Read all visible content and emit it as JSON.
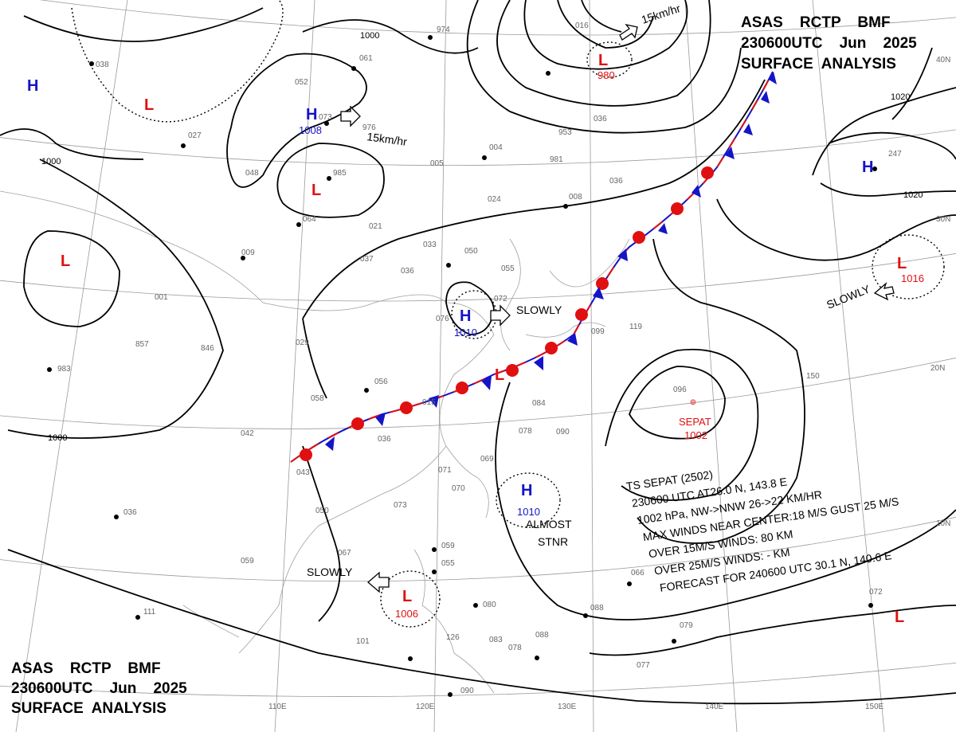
{
  "header_top": {
    "line1": "ASAS    RCTP    BMF",
    "line2": "230600UTC    Jun    2025",
    "line3": "SURFACE  ANALYSIS"
  },
  "header_bottom": {
    "line1": "ASAS    RCTP    BMF",
    "line2": "230600UTC    Jun    2025",
    "line3": "SURFACE  ANALYSIS"
  },
  "longitudes": [
    "110E",
    "120E",
    "130E",
    "140E",
    "150E"
  ],
  "latitudes": [
    "40N",
    "30N",
    "20N",
    "10N"
  ],
  "isobar_labels": [
    "1000",
    "1000",
    "1000",
    "1020",
    "1020"
  ],
  "pressure_systems": [
    {
      "type": "H",
      "value": "1008",
      "color": "#1414c8"
    },
    {
      "type": "H",
      "value": "1010",
      "color": "#1414c8"
    },
    {
      "type": "H",
      "value": "1010",
      "color": "#1414c8"
    },
    {
      "type": "H",
      "value": "",
      "color": "#1414c8"
    },
    {
      "type": "H",
      "value": "",
      "color": "#1414c8"
    },
    {
      "type": "L",
      "value": "980",
      "color": "#e01010"
    },
    {
      "type": "L",
      "value": "1016",
      "color": "#e01010"
    },
    {
      "type": "L",
      "value": "1006",
      "color": "#e01010"
    },
    {
      "type": "L",
      "value": "",
      "color": "#e01010"
    },
    {
      "type": "L",
      "value": "",
      "color": "#e01010"
    },
    {
      "type": "L",
      "value": "",
      "color": "#e01010"
    },
    {
      "type": "L",
      "value": "",
      "color": "#e01010"
    },
    {
      "type": "L",
      "value": "",
      "color": "#e01010"
    }
  ],
  "motion_labels": [
    "15km/hr",
    "15km/hr",
    "SLOWLY",
    "SLOWLY",
    "SLOWLY",
    "ALMOST",
    "STNR"
  ],
  "storm": {
    "name": "SEPAT",
    "pressure": "1002",
    "color": "#e01010"
  },
  "storm_info": [
    "TS  SEPAT  (2502)",
    "230600 UTC  AT26.0 N, 143.8 E",
    "1002 hPa, NW->NNW  26->22 KM/HR",
    "MAX WINDS NEAR CENTER:18 M/S GUST 25 M/S",
    "OVER 15M/S WINDS: 80 KM",
    "OVER 25M/S WINDS: - KM",
    "FORECAST FOR 240600 UTC 30.1 N, 140.6 E"
  ],
  "station_numbers": [
    "974",
    "061",
    "052",
    "073",
    "976",
    "027",
    "048",
    "985",
    "064",
    "021",
    "009",
    "037",
    "036",
    "033",
    "050",
    "055",
    "072",
    "076",
    "001",
    "857",
    "846",
    "983",
    "029",
    "058",
    "056",
    "015",
    "042",
    "036",
    "043",
    "050",
    "071",
    "070",
    "073",
    "069",
    "078",
    "090",
    "084",
    "067",
    "059",
    "055",
    "059",
    "080",
    "036",
    "111",
    "101",
    "126",
    "083",
    "078",
    "088",
    "090",
    "088",
    "077",
    "079",
    "072",
    "066",
    "150",
    "096",
    "119",
    "099",
    "247",
    "036",
    "008",
    "024",
    "005",
    "004",
    "953",
    "981",
    "016",
    "036",
    "038"
  ],
  "colors": {
    "high": "#1414c8",
    "low": "#e01010",
    "warm_front": "#e01010",
    "cold_front": "#1414c8"
  }
}
